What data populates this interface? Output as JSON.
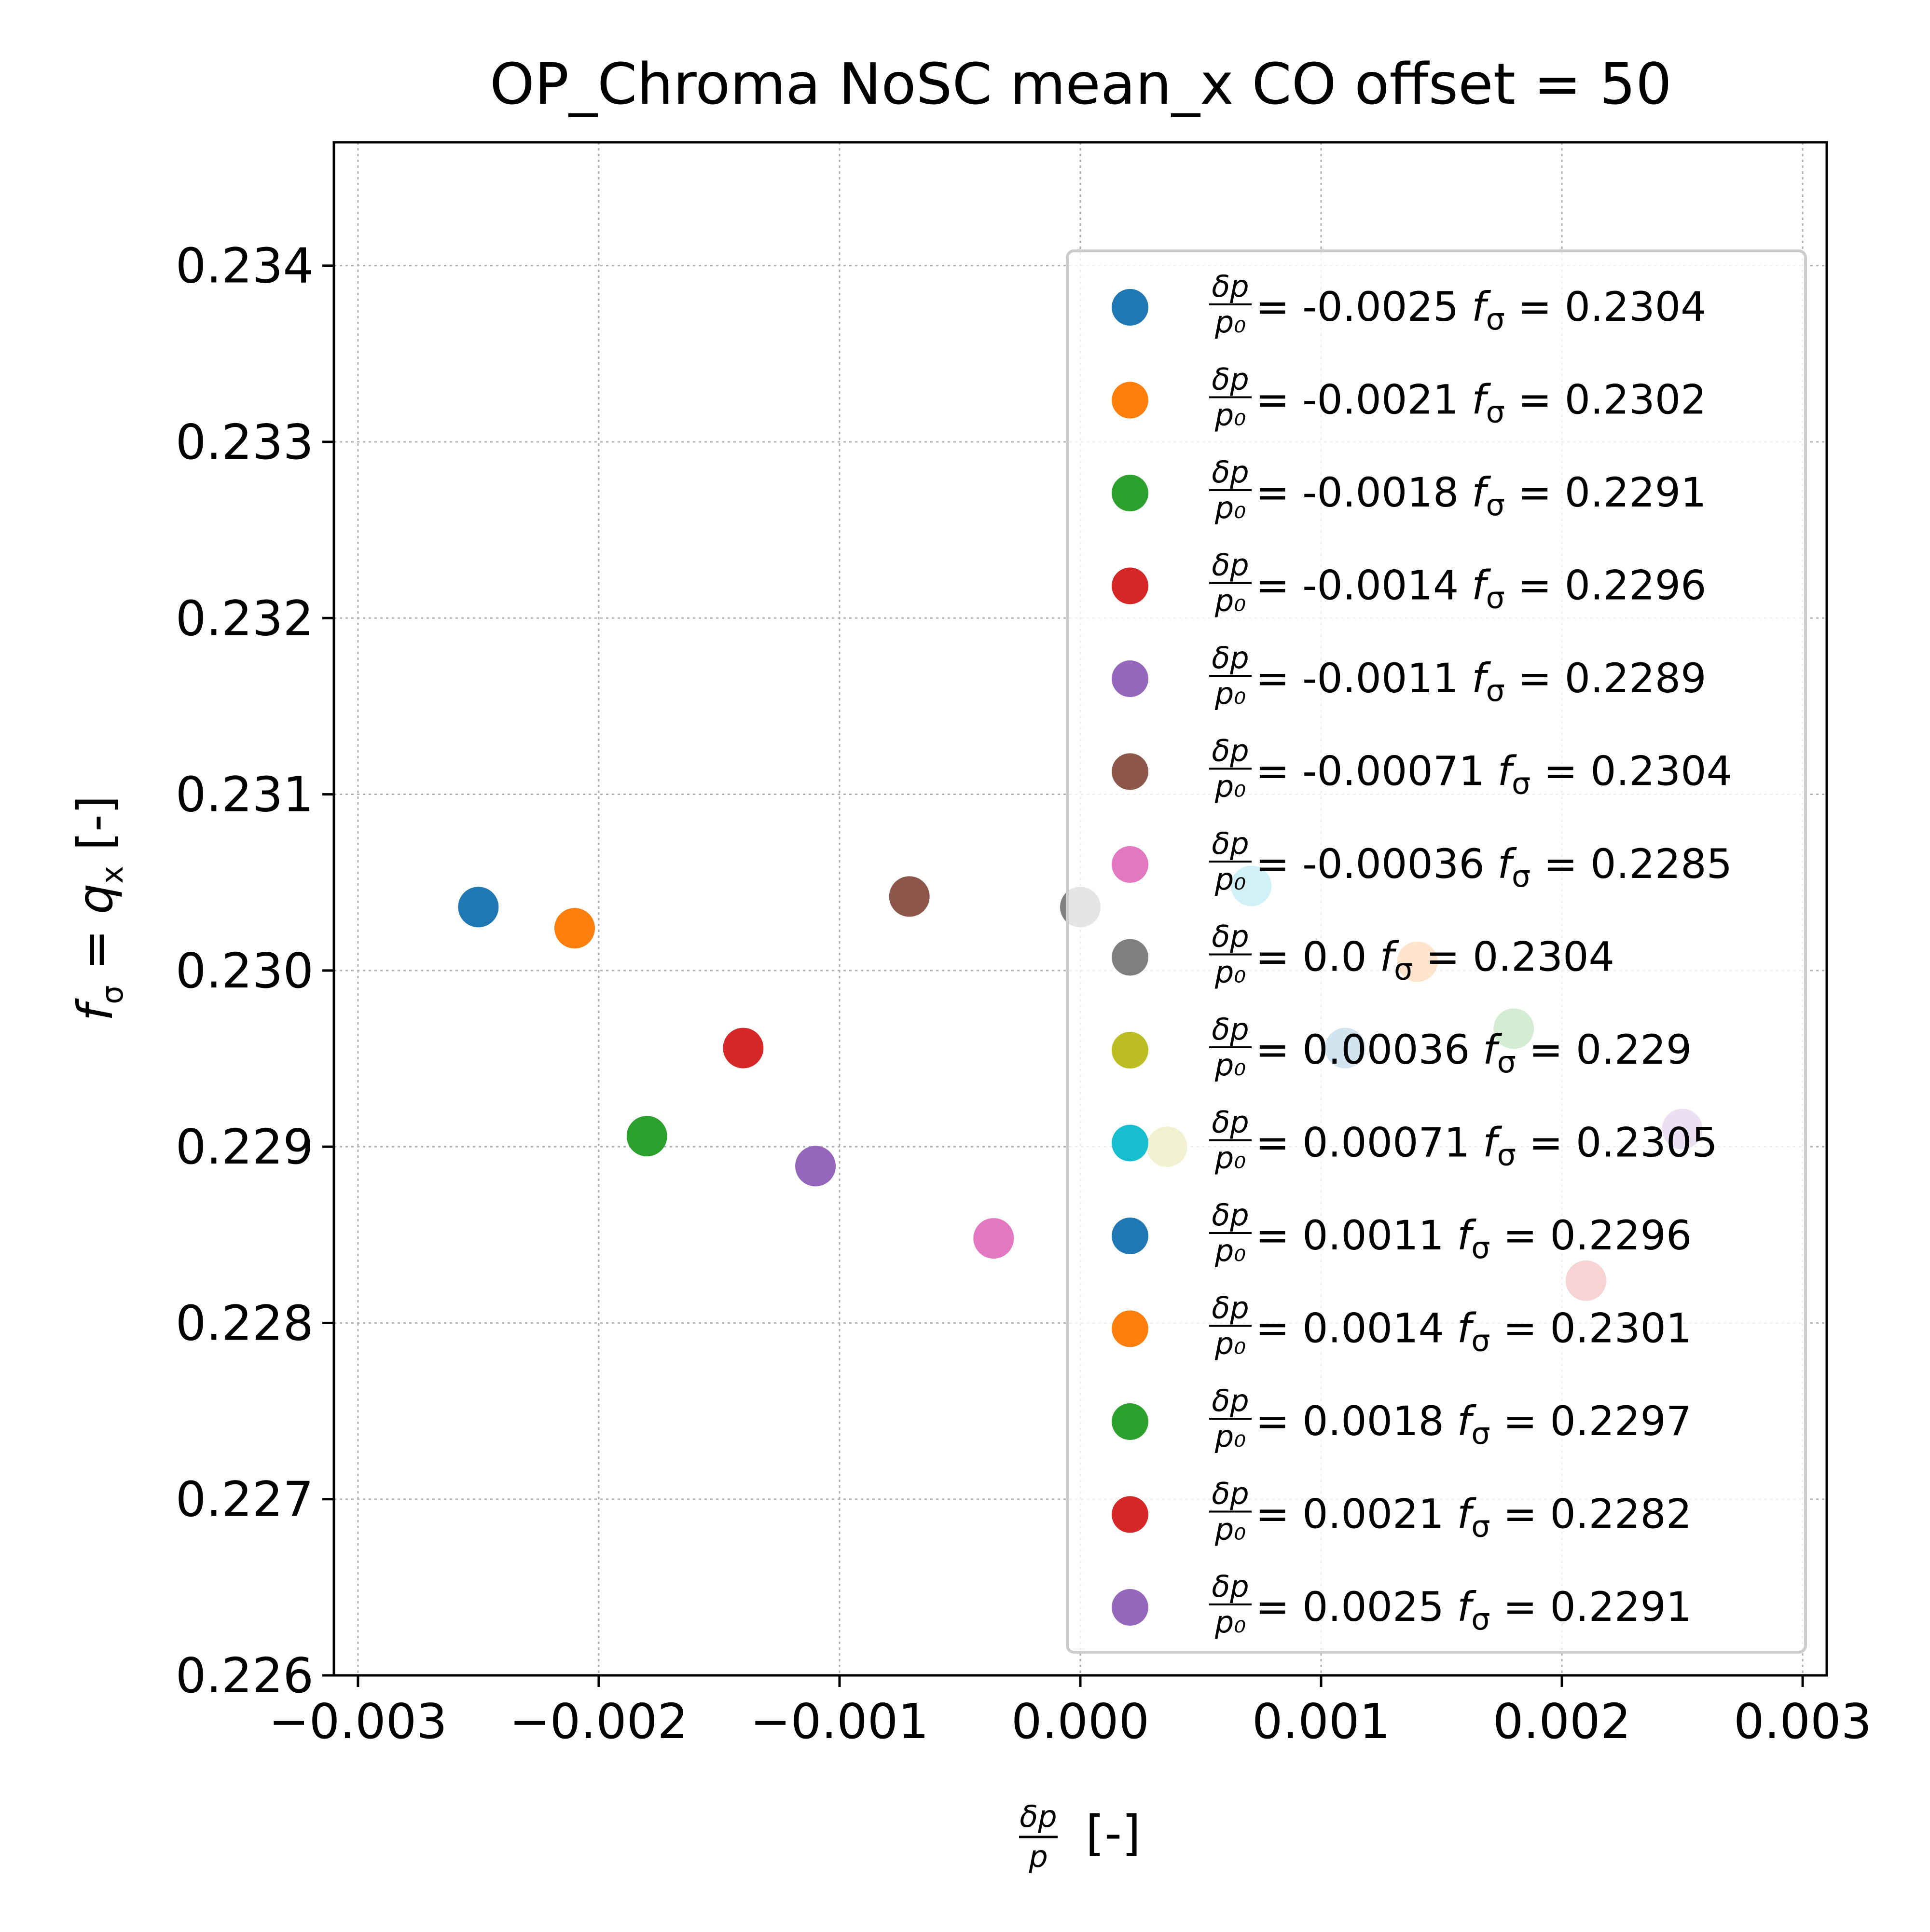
{
  "chart_data": {
    "type": "scatter",
    "title": "OP_Chroma NoSC mean_x CO offset = 50",
    "xlabel": {
      "frac_num": "δp",
      "frac_den": "p",
      "unit": "[-]"
    },
    "ylabel": {
      "f": "f",
      "sub": "σ",
      "eq": " = ",
      "q": "q",
      "qsub": "x",
      "unit": " [-]"
    },
    "xlim": [
      -0.0031,
      0.0031
    ],
    "ylim": [
      0.226,
      0.2347
    ],
    "xticks": [
      -0.003,
      -0.002,
      -0.001,
      0.0,
      0.001,
      0.002,
      0.003
    ],
    "xtick_labels": [
      "−0.003",
      "−0.002",
      "−0.001",
      "0.000",
      "0.001",
      "0.002",
      "0.003"
    ],
    "yticks": [
      0.226,
      0.227,
      0.228,
      0.229,
      0.23,
      0.231,
      0.232,
      0.233,
      0.234
    ],
    "ytick_labels": [
      "0.226",
      "0.227",
      "0.228",
      "0.229",
      "0.230",
      "0.231",
      "0.232",
      "0.233",
      "0.234"
    ],
    "grid": true,
    "legend_position": "right",
    "legend_prefix": {
      "num": "δp",
      "den": "p₀"
    },
    "series": [
      {
        "dp_label": "-0.0025",
        "f_label": "0.2304",
        "x": -0.0025,
        "y": 0.23036,
        "color": "#1f77b4"
      },
      {
        "dp_label": "-0.0021",
        "f_label": "0.2302",
        "x": -0.0021,
        "y": 0.23024,
        "color": "#ff7f0e"
      },
      {
        "dp_label": "-0.0018",
        "f_label": "0.2291",
        "x": -0.0018,
        "y": 0.22906,
        "color": "#2ca02c"
      },
      {
        "dp_label": "-0.0014",
        "f_label": "0.2296",
        "x": -0.0014,
        "y": 0.22956,
        "color": "#d62728"
      },
      {
        "dp_label": "-0.0011",
        "f_label": "0.2289",
        "x": -0.0011,
        "y": 0.22889,
        "color": "#9467bd"
      },
      {
        "dp_label": "-0.00071",
        "f_label": "0.2304",
        "x": -0.00071,
        "y": 0.23042,
        "color": "#8c564b"
      },
      {
        "dp_label": "-0.00036",
        "f_label": "0.2285",
        "x": -0.00036,
        "y": 0.22848,
        "color": "#e377c2"
      },
      {
        "dp_label": "0.0",
        "f_label": "0.2304",
        "x": 0.0,
        "y": 0.23036,
        "color": "#7f7f7f"
      },
      {
        "dp_label": "0.00036",
        "f_label": "0.229",
        "x": 0.00036,
        "y": 0.229,
        "color": "#bcbd22"
      },
      {
        "dp_label": "0.00071",
        "f_label": "0.2305",
        "x": 0.00071,
        "y": 0.23048,
        "color": "#17becf"
      },
      {
        "dp_label": "0.0011",
        "f_label": "0.2296",
        "x": 0.0011,
        "y": 0.22956,
        "color": "#1f77b4"
      },
      {
        "dp_label": "0.0014",
        "f_label": "0.2301",
        "x": 0.0014,
        "y": 0.23005,
        "color": "#ff7f0e"
      },
      {
        "dp_label": "0.0018",
        "f_label": "0.2297",
        "x": 0.0018,
        "y": 0.22967,
        "color": "#2ca02c"
      },
      {
        "dp_label": "0.0021",
        "f_label": "0.2282",
        "x": 0.0021,
        "y": 0.22824,
        "color": "#d62728"
      },
      {
        "dp_label": "0.0025",
        "f_label": "0.2291",
        "x": 0.0025,
        "y": 0.2291,
        "color": "#9467bd"
      }
    ]
  }
}
